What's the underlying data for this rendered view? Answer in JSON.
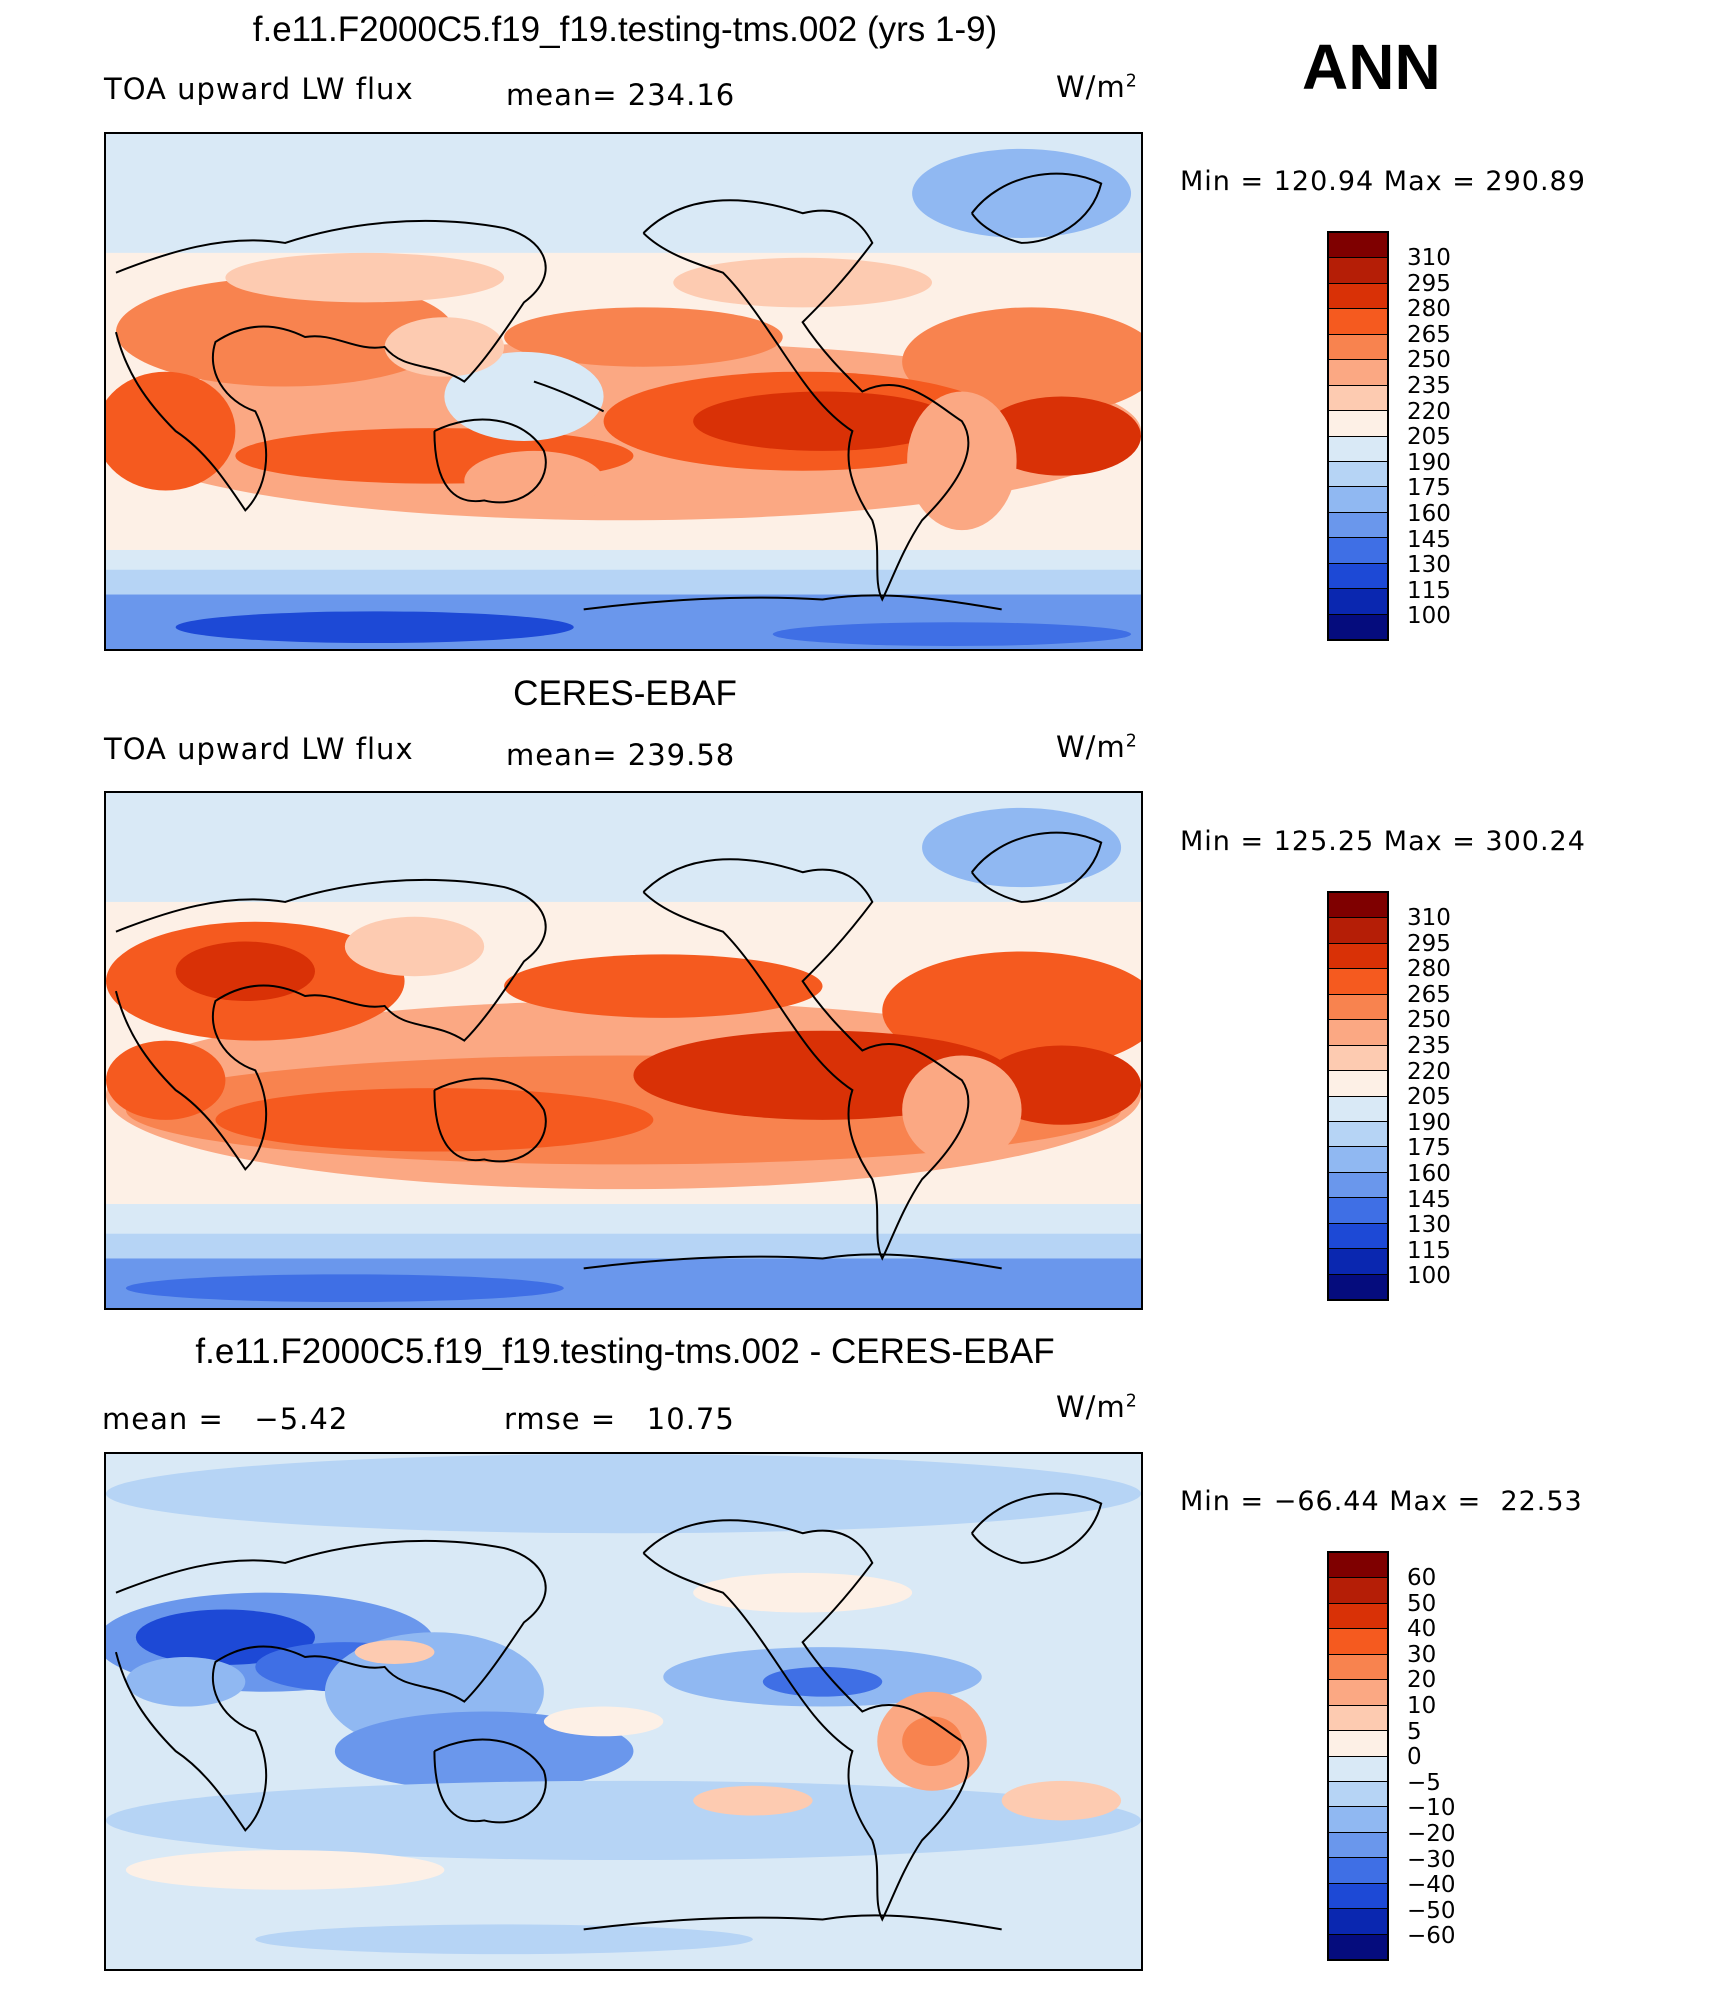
{
  "season": "ANN",
  "units_base": "W/m",
  "units_exp": "2",
  "panels": [
    {
      "title": "f.e11.F2000C5.f19_f19.testing-tms.002 (yrs 1-9)",
      "variable": "TOA upward LW flux",
      "stat1_label": "mean=",
      "stat1_value": "234.16",
      "min_label": "Min",
      "min_value": "120.94",
      "max_label": "Max",
      "max_value": "290.89"
    },
    {
      "title": "CERES-EBAF",
      "variable": "TOA upward LW flux",
      "stat1_label": "mean=",
      "stat1_value": "239.58",
      "min_label": "Min",
      "min_value": "125.25",
      "max_label": "Max",
      "max_value": "300.24"
    },
    {
      "title": "f.e11.F2000C5.f19_f19.testing-tms.002 - CERES-EBAF",
      "variable": "",
      "stat1_label": "mean =",
      "stat1_value": "−5.42",
      "stat2_label": "rmse =",
      "stat2_value": "10.75",
      "min_label": "Min",
      "min_value": "−66.44",
      "max_label": "Max",
      "max_value": "22.53"
    }
  ],
  "colorbars": {
    "absolute": {
      "labels": [
        "310",
        "295",
        "280",
        "265",
        "250",
        "235",
        "220",
        "205",
        "190",
        "175",
        "160",
        "145",
        "130",
        "115",
        "100"
      ],
      "colors": [
        "#7f0000",
        "#b51e06",
        "#d93106",
        "#f55a1f",
        "#f8834f",
        "#fba883",
        "#fdcbb1",
        "#fdf0e6",
        "#d9e9f6",
        "#b6d4f5",
        "#90b8f2",
        "#6a97ec",
        "#3f6fe5",
        "#1d49d6",
        "#0a27b0",
        "#050c7d"
      ]
    },
    "difference": {
      "labels": [
        "60",
        "50",
        "40",
        "30",
        "20",
        "10",
        "5",
        "0",
        "−5",
        "−10",
        "−20",
        "−30",
        "−40",
        "−50",
        "−60"
      ],
      "colors": [
        "#7f0000",
        "#b51e06",
        "#d93106",
        "#f55a1f",
        "#f8834f",
        "#fba883",
        "#fdcbb1",
        "#fdf0e6",
        "#d9e9f6",
        "#b6d4f5",
        "#90b8f2",
        "#6a97ec",
        "#3f6fe5",
        "#1d49d6",
        "#0a27b0",
        "#050c7d"
      ]
    }
  },
  "chart_data": [
    {
      "type": "heatmap",
      "title": "f.e11.F2000C5.f19_f19.testing-tms.002 (yrs 1-9)",
      "variable": "TOA upward LW flux",
      "units": "W/m2",
      "mean": 234.16,
      "min": 120.94,
      "max": 290.89,
      "contour_levels": [
        100,
        115,
        130,
        145,
        160,
        175,
        190,
        205,
        220,
        235,
        250,
        265,
        280,
        295,
        310
      ]
    },
    {
      "type": "heatmap",
      "title": "CERES-EBAF",
      "variable": "TOA upward LW flux",
      "units": "W/m2",
      "mean": 239.58,
      "min": 125.25,
      "max": 300.24,
      "contour_levels": [
        100,
        115,
        130,
        145,
        160,
        175,
        190,
        205,
        220,
        235,
        250,
        265,
        280,
        295,
        310
      ]
    },
    {
      "type": "heatmap",
      "title": "f.e11.F2000C5.f19_f19.testing-tms.002 - CERES-EBAF",
      "units": "W/m2",
      "mean": -5.42,
      "rmse": 10.75,
      "min": -66.44,
      "max": 22.53,
      "contour_levels": [
        -60,
        -50,
        -40,
        -30,
        -20,
        -10,
        -5,
        0,
        5,
        10,
        20,
        30,
        40,
        50,
        60
      ]
    }
  ]
}
